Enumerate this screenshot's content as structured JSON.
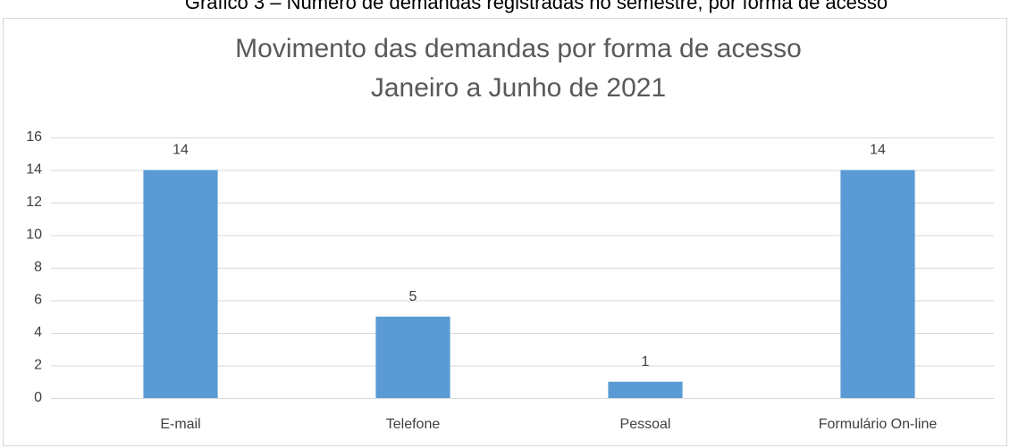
{
  "chart_data": {
    "type": "bar",
    "caption": "Gráfico 3 – Número de demandas registradas no semestre, por forma de acesso",
    "title": "Movimento das demandas por forma de acesso",
    "subtitle": "Janeiro a Junho de 2021",
    "categories": [
      "E-mail",
      "Telefone",
      "Pessoal",
      "Formulário On-line"
    ],
    "values": [
      14,
      5,
      1,
      14
    ],
    "color": "#5b9bd5",
    "ylim": [
      0,
      16
    ],
    "yticks": [
      0,
      2,
      4,
      6,
      8,
      10,
      12,
      14,
      16
    ],
    "grid": true,
    "data_labels": true
  }
}
